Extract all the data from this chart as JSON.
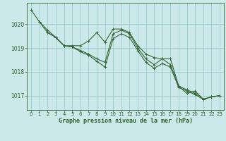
{
  "background_color": "#cbe9e9",
  "plot_bg_color": "#cbe9e9",
  "grid_color": "#99cccc",
  "line_color": "#336633",
  "marker_color": "#336633",
  "xlabel": "Graphe pression niveau de la mer (hPa)",
  "xlim": [
    -0.5,
    23.5
  ],
  "ylim": [
    1016.4,
    1020.9
  ],
  "yticks": [
    1017,
    1018,
    1019,
    1020
  ],
  "xticks": [
    0,
    1,
    2,
    3,
    4,
    5,
    6,
    7,
    8,
    9,
    10,
    11,
    12,
    13,
    14,
    15,
    16,
    17,
    18,
    19,
    20,
    21,
    22,
    23
  ],
  "series1_x": [
    0,
    1,
    2,
    3,
    4,
    5,
    6,
    7,
    8,
    9,
    10,
    11,
    12,
    13,
    14,
    15,
    16,
    17,
    18,
    19,
    20,
    21,
    22,
    23
  ],
  "series1_y": [
    1020.6,
    1020.1,
    1019.75,
    1019.45,
    1019.1,
    1019.1,
    1019.1,
    1019.3,
    1019.65,
    1019.25,
    1019.8,
    1019.8,
    1019.65,
    1019.1,
    1018.75,
    1018.6,
    1018.55,
    1018.55,
    1017.4,
    1017.1,
    1017.2,
    1016.85,
    1016.95,
    1017.0
  ],
  "series2_x": [
    1,
    2,
    3,
    4,
    5,
    6,
    7,
    8,
    9,
    10,
    11,
    12,
    13,
    14,
    15,
    16,
    17,
    18,
    19,
    20,
    21,
    22,
    23
  ],
  "series2_y": [
    1020.1,
    1019.65,
    1019.45,
    1019.1,
    1019.05,
    1018.9,
    1018.75,
    1018.55,
    1018.4,
    1019.6,
    1019.75,
    1019.6,
    1019.0,
    1018.55,
    1018.3,
    1018.55,
    1018.3,
    1017.4,
    1017.25,
    1017.1,
    1016.85,
    1016.95,
    1017.0
  ],
  "series3_x": [
    2,
    3,
    4,
    5,
    6,
    7,
    8,
    9,
    10,
    11,
    12,
    13,
    14,
    15,
    16,
    17,
    18,
    19,
    20,
    21,
    22,
    23
  ],
  "series3_y": [
    1019.65,
    1019.45,
    1019.1,
    1019.05,
    1018.85,
    1018.7,
    1018.45,
    1018.2,
    1019.4,
    1019.6,
    1019.45,
    1018.9,
    1018.4,
    1018.15,
    1018.35,
    1018.2,
    1017.35,
    1017.2,
    1017.05,
    1016.85,
    1016.95,
    1017.0
  ]
}
